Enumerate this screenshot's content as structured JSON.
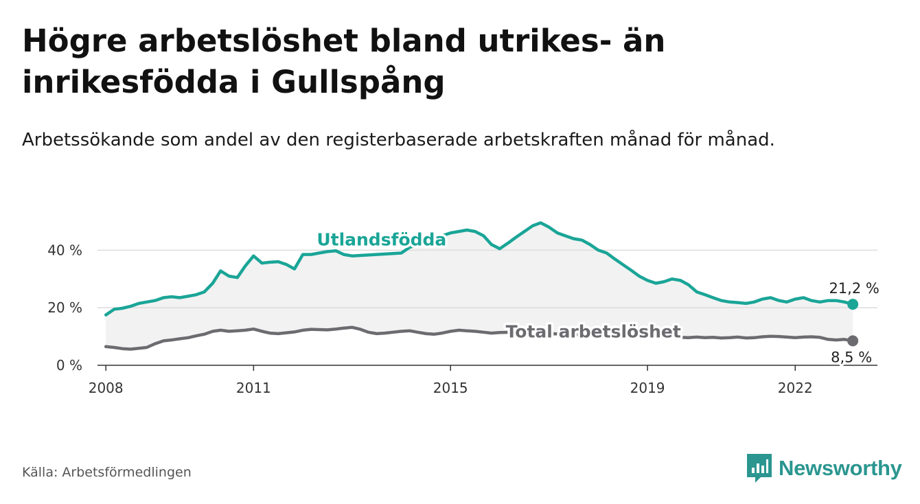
{
  "title": "Högre arbetslöshet bland utrikes- än inrikesfödda i Gullspång",
  "subtitle": "Arbetssökande som andel av den registerbaserade arbetskraften månad för månad.",
  "source": "Källa: Arbetsförmedlingen",
  "brand": "Newsworthy",
  "colors": {
    "foreign": "#1aa597",
    "total": "#6c6c70",
    "band": "#f2f2f2",
    "grid": "#dddddd",
    "brand": "#2b9690"
  },
  "chart_data": {
    "type": "line",
    "title": "Högre arbetslöshet bland utrikes- än inrikesfödda i Gullspång",
    "xlabel": "",
    "ylabel": "",
    "xlim": [
      2007.83,
      2023.67
    ],
    "ylim": [
      0,
      47
    ],
    "y_ticks": [
      0,
      20,
      40
    ],
    "y_tick_labels": [
      "0 %",
      "20 %",
      "40 %"
    ],
    "x_ticks": [
      2008,
      2011,
      2015,
      2019,
      2022
    ],
    "x_tick_labels": [
      "2008",
      "2011",
      "2015",
      "2019",
      "2022"
    ],
    "series": [
      {
        "name": "Utlandsfödda",
        "end_label": "21,2 %",
        "x": [
          2008.0,
          2008.17,
          2008.33,
          2008.5,
          2008.67,
          2008.83,
          2009.0,
          2009.17,
          2009.33,
          2009.5,
          2009.67,
          2009.83,
          2010.0,
          2010.17,
          2010.33,
          2010.5,
          2010.67,
          2010.83,
          2011.0,
          2011.17,
          2011.33,
          2011.5,
          2011.67,
          2011.83,
          2012.0,
          2012.17,
          2012.33,
          2012.5,
          2012.67,
          2012.83,
          2013.0,
          2013.5,
          2014.0,
          2014.17,
          2014.33,
          2014.5,
          2014.67,
          2014.83,
          2015.0,
          2015.17,
          2015.33,
          2015.5,
          2015.67,
          2015.83,
          2016.0,
          2016.17,
          2016.33,
          2016.5,
          2016.67,
          2016.83,
          2017.0,
          2017.17,
          2017.33,
          2017.5,
          2017.67,
          2017.83,
          2018.0,
          2018.17,
          2018.33,
          2018.5,
          2018.67,
          2018.83,
          2019.0,
          2019.17,
          2019.33,
          2019.5,
          2019.67,
          2019.83,
          2020.0,
          2020.17,
          2020.33,
          2020.5,
          2020.67,
          2020.83,
          2021.0,
          2021.17,
          2021.33,
          2021.5,
          2021.67,
          2021.83,
          2022.0,
          2022.17,
          2022.33,
          2022.5,
          2022.67,
          2022.83,
          2023.0,
          2023.17
        ],
        "values": [
          17.5,
          19.5,
          19.8,
          20.5,
          21.5,
          22.0,
          22.5,
          23.5,
          23.8,
          23.5,
          24.0,
          24.5,
          25.5,
          28.5,
          32.8,
          31.0,
          30.5,
          34.5,
          38.0,
          35.5,
          35.8,
          36.0,
          35.0,
          33.5,
          38.5,
          38.5,
          39.0,
          39.5,
          39.8,
          38.5,
          38.0,
          38.5,
          39.0,
          41.0,
          42.0,
          43.0,
          44.0,
          45.0,
          46.0,
          46.5,
          47.0,
          46.5,
          45.0,
          42.0,
          40.5,
          42.5,
          44.5,
          46.5,
          48.5,
          49.5,
          48.0,
          46.0,
          45.0,
          44.0,
          43.5,
          42.0,
          40.0,
          39.0,
          37.0,
          35.0,
          33.0,
          31.0,
          29.5,
          28.5,
          29.0,
          30.0,
          29.5,
          28.0,
          25.5,
          24.5,
          23.5,
          22.5,
          22.0,
          21.8,
          21.5,
          22.0,
          23.0,
          23.5,
          22.5,
          22.0,
          23.0,
          23.5,
          22.5,
          22.0,
          22.5,
          22.5,
          22.0,
          21.2
        ]
      },
      {
        "name": "Total arbetslöshet",
        "end_label": "8,5 %",
        "x": [
          2008.0,
          2008.17,
          2008.33,
          2008.5,
          2008.67,
          2008.83,
          2009.0,
          2009.17,
          2009.33,
          2009.5,
          2009.67,
          2009.83,
          2010.0,
          2010.17,
          2010.33,
          2010.5,
          2010.67,
          2010.83,
          2011.0,
          2011.17,
          2011.33,
          2011.5,
          2011.67,
          2011.83,
          2012.0,
          2012.17,
          2012.33,
          2012.5,
          2012.67,
          2012.83,
          2013.0,
          2013.17,
          2013.33,
          2013.5,
          2013.67,
          2013.83,
          2014.0,
          2014.17,
          2014.33,
          2014.5,
          2014.67,
          2014.83,
          2015.0,
          2015.17,
          2015.33,
          2015.5,
          2015.67,
          2015.83,
          2016.0,
          2016.33,
          2016.67,
          2017.0,
          2017.33,
          2017.67,
          2018.0,
          2018.33,
          2018.67,
          2019.0,
          2019.17,
          2019.33,
          2019.5,
          2019.67,
          2019.83,
          2020.0,
          2020.17,
          2020.33,
          2020.5,
          2020.67,
          2020.83,
          2021.0,
          2021.17,
          2021.33,
          2021.5,
          2021.67,
          2021.83,
          2022.0,
          2022.17,
          2022.33,
          2022.5,
          2022.67,
          2022.83,
          2023.0,
          2023.17
        ],
        "values": [
          6.5,
          6.2,
          5.8,
          5.6,
          5.9,
          6.2,
          7.5,
          8.5,
          8.8,
          9.2,
          9.6,
          10.2,
          10.8,
          11.8,
          12.2,
          11.8,
          12.0,
          12.2,
          12.6,
          11.8,
          11.2,
          11.0,
          11.3,
          11.6,
          12.2,
          12.5,
          12.4,
          12.3,
          12.6,
          12.9,
          13.2,
          12.5,
          11.5,
          11.0,
          11.2,
          11.5,
          11.8,
          12.0,
          11.5,
          11.0,
          10.8,
          11.2,
          11.8,
          12.2,
          12.0,
          11.8,
          11.5,
          11.2,
          11.4,
          11.5,
          11.3,
          11.0,
          10.8,
          10.6,
          10.5,
          10.3,
          10.2,
          10.0,
          9.8,
          9.8,
          9.9,
          9.7,
          9.6,
          9.8,
          9.6,
          9.7,
          9.5,
          9.6,
          9.8,
          9.5,
          9.6,
          9.9,
          10.1,
          10.0,
          9.8,
          9.6,
          9.8,
          9.9,
          9.7,
          9.0,
          8.8,
          9.0,
          8.5
        ]
      }
    ]
  }
}
